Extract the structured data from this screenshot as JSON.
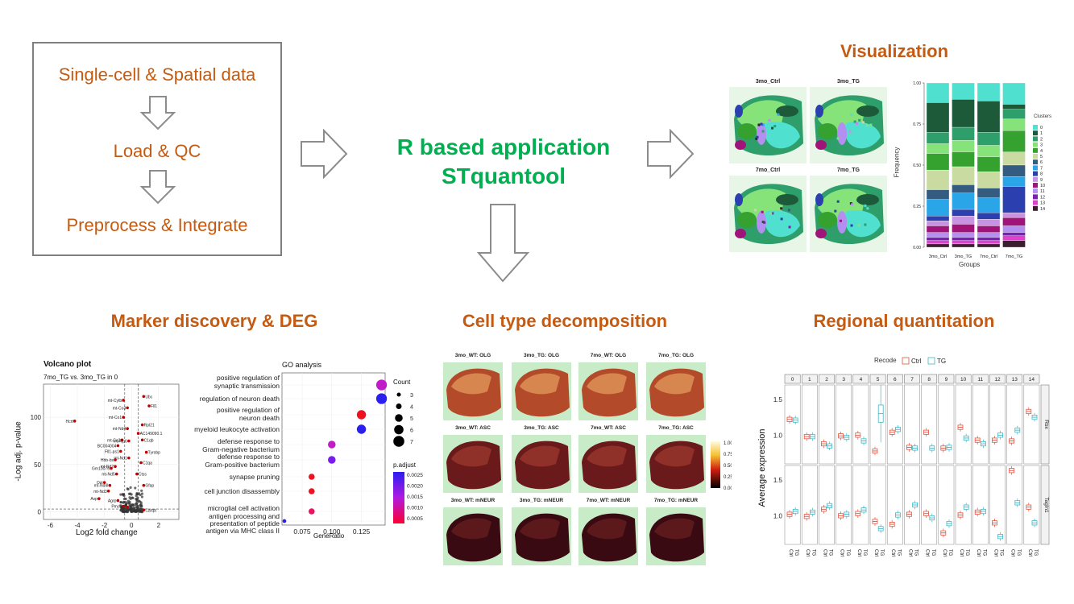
{
  "workflow": {
    "step1": "Single-cell & Spatial data",
    "step2": "Load & QC",
    "step3": "Preprocess & Integrate"
  },
  "app": {
    "line1": "R based application",
    "line2": "STquantool"
  },
  "sections": {
    "visualization": "Visualization",
    "marker": "Marker discovery & DEG",
    "celltype": "Cell type decomposition",
    "regional": "Regional quantitation"
  },
  "spatial_maps": {
    "labels": [
      "3mo_Ctrl",
      "3mo_TG",
      "7mo_Ctrl",
      "7mo_TG"
    ]
  },
  "freq_chart": {
    "ylabel": "Frequency",
    "xlabel": "Groups",
    "groups": [
      "3mo_Ctrl",
      "3mo_TG",
      "7mo_Ctrl",
      "7mo_TG"
    ],
    "yticks": [
      "0.00",
      "0.25",
      "0.50",
      "0.75",
      "1.00"
    ],
    "legend_title": "Clusters",
    "clusters": [
      "0",
      "1",
      "2",
      "3",
      "4",
      "5",
      "6",
      "7",
      "8",
      "9",
      "10",
      "11",
      "12",
      "13",
      "14"
    ],
    "colors": [
      "#4fe0cf",
      "#1d5a3a",
      "#2e9e6b",
      "#86e37a",
      "#35a12e",
      "#c9dba0",
      "#335c80",
      "#2aa5e8",
      "#2b3fae",
      "#c793e3",
      "#a0147a",
      "#b48ef0",
      "#7a1fb0",
      "#e23fd0",
      "#3a1f2e"
    ]
  },
  "volcano": {
    "title": "Volcano plot",
    "subtitle": "7mo_TG vs. 3mo_TG in 0",
    "xlabel": "Log2 fold change",
    "ylabel": "-Log adj. p-value",
    "xticks": [
      "-6",
      "-4",
      "-2",
      "0",
      "2"
    ],
    "yticks": [
      "0",
      "50",
      "100"
    ],
    "genes": [
      "Ubc",
      "Fll1",
      "mt-Cytb",
      "mt-Co3",
      "Hcrt",
      "mt-Co1",
      "Rpl21",
      "mt-Nd4",
      "AC149090.1",
      "mt-Co2",
      "mt-Atp6",
      "C1qb",
      "BC004004",
      "Fll1-ps1",
      "Tyrobp",
      "mt-Nd1",
      "Hbb-bs",
      "C1qa",
      "mt-Nd2",
      "Gm10076",
      "mt-Nd5",
      "Ctss",
      "Oxt",
      "mt-Nd4l",
      "Gfap",
      "mt-Nd3",
      "Avp",
      "Agrp",
      "Pmch",
      "Cartpt"
    ]
  },
  "go": {
    "title": "GO analysis",
    "xlabel": "GeneRatio",
    "xticks": [
      "0.075",
      "0.100",
      "0.125"
    ],
    "terms": [
      "positive regulation of\nsynaptic transmission",
      "regulation of neuron death",
      "positive regulation of\nneuron death",
      "myeloid leukocyte activation",
      "defense response to\nGram-negative bacterium",
      "defense response to\nGram-positive bacterium",
      "synapse pruning",
      "cell junction disassembly",
      "microglial cell activation",
      "antigen processing and\npresentation of peptide\nantigen via MHC class II"
    ],
    "count_title": "Count",
    "counts": [
      "3",
      "4",
      "5",
      "6",
      "7"
    ],
    "padj_title": "p.adjust",
    "padj": [
      "0.0025",
      "0.0020",
      "0.0015",
      "0.0010",
      "0.0005"
    ]
  },
  "celltype": {
    "labels": [
      "3mo_WT: OLG",
      "3mo_TG: OLG",
      "7mo_WT: OLG",
      "7mo_TG: OLG",
      "3mo_WT: ASC",
      "3mo_TG: ASC",
      "7mo_WT: ASC",
      "7mo_TG: ASC",
      "3mo_WT: mNEUR",
      "3mo_TG: mNEUR",
      "7mo_WT: mNEUR",
      "7mo_TG: mNEUR"
    ],
    "scale": [
      "1.00",
      "0.75",
      "0.50",
      "0.25",
      "0.00"
    ]
  },
  "regional": {
    "legend_title": "Recode",
    "legend_items": [
      "Ctrl",
      "TG"
    ],
    "colors": {
      "ctrl": "#e4543f",
      "tg": "#3fb8c8"
    },
    "ylabel": "Average expression",
    "clusters": [
      "0",
      "1",
      "2",
      "3",
      "4",
      "5",
      "6",
      "7",
      "8",
      "9",
      "10",
      "11",
      "12",
      "13",
      "14"
    ],
    "facets": [
      "Rbx",
      "Tagln1"
    ],
    "yticks_top": [
      "1.5",
      "1.0"
    ],
    "yticks_bottom": [
      "1.5",
      "1.0"
    ],
    "xtick_ctrl": "Ctrl",
    "xtick_tg": "TG"
  }
}
